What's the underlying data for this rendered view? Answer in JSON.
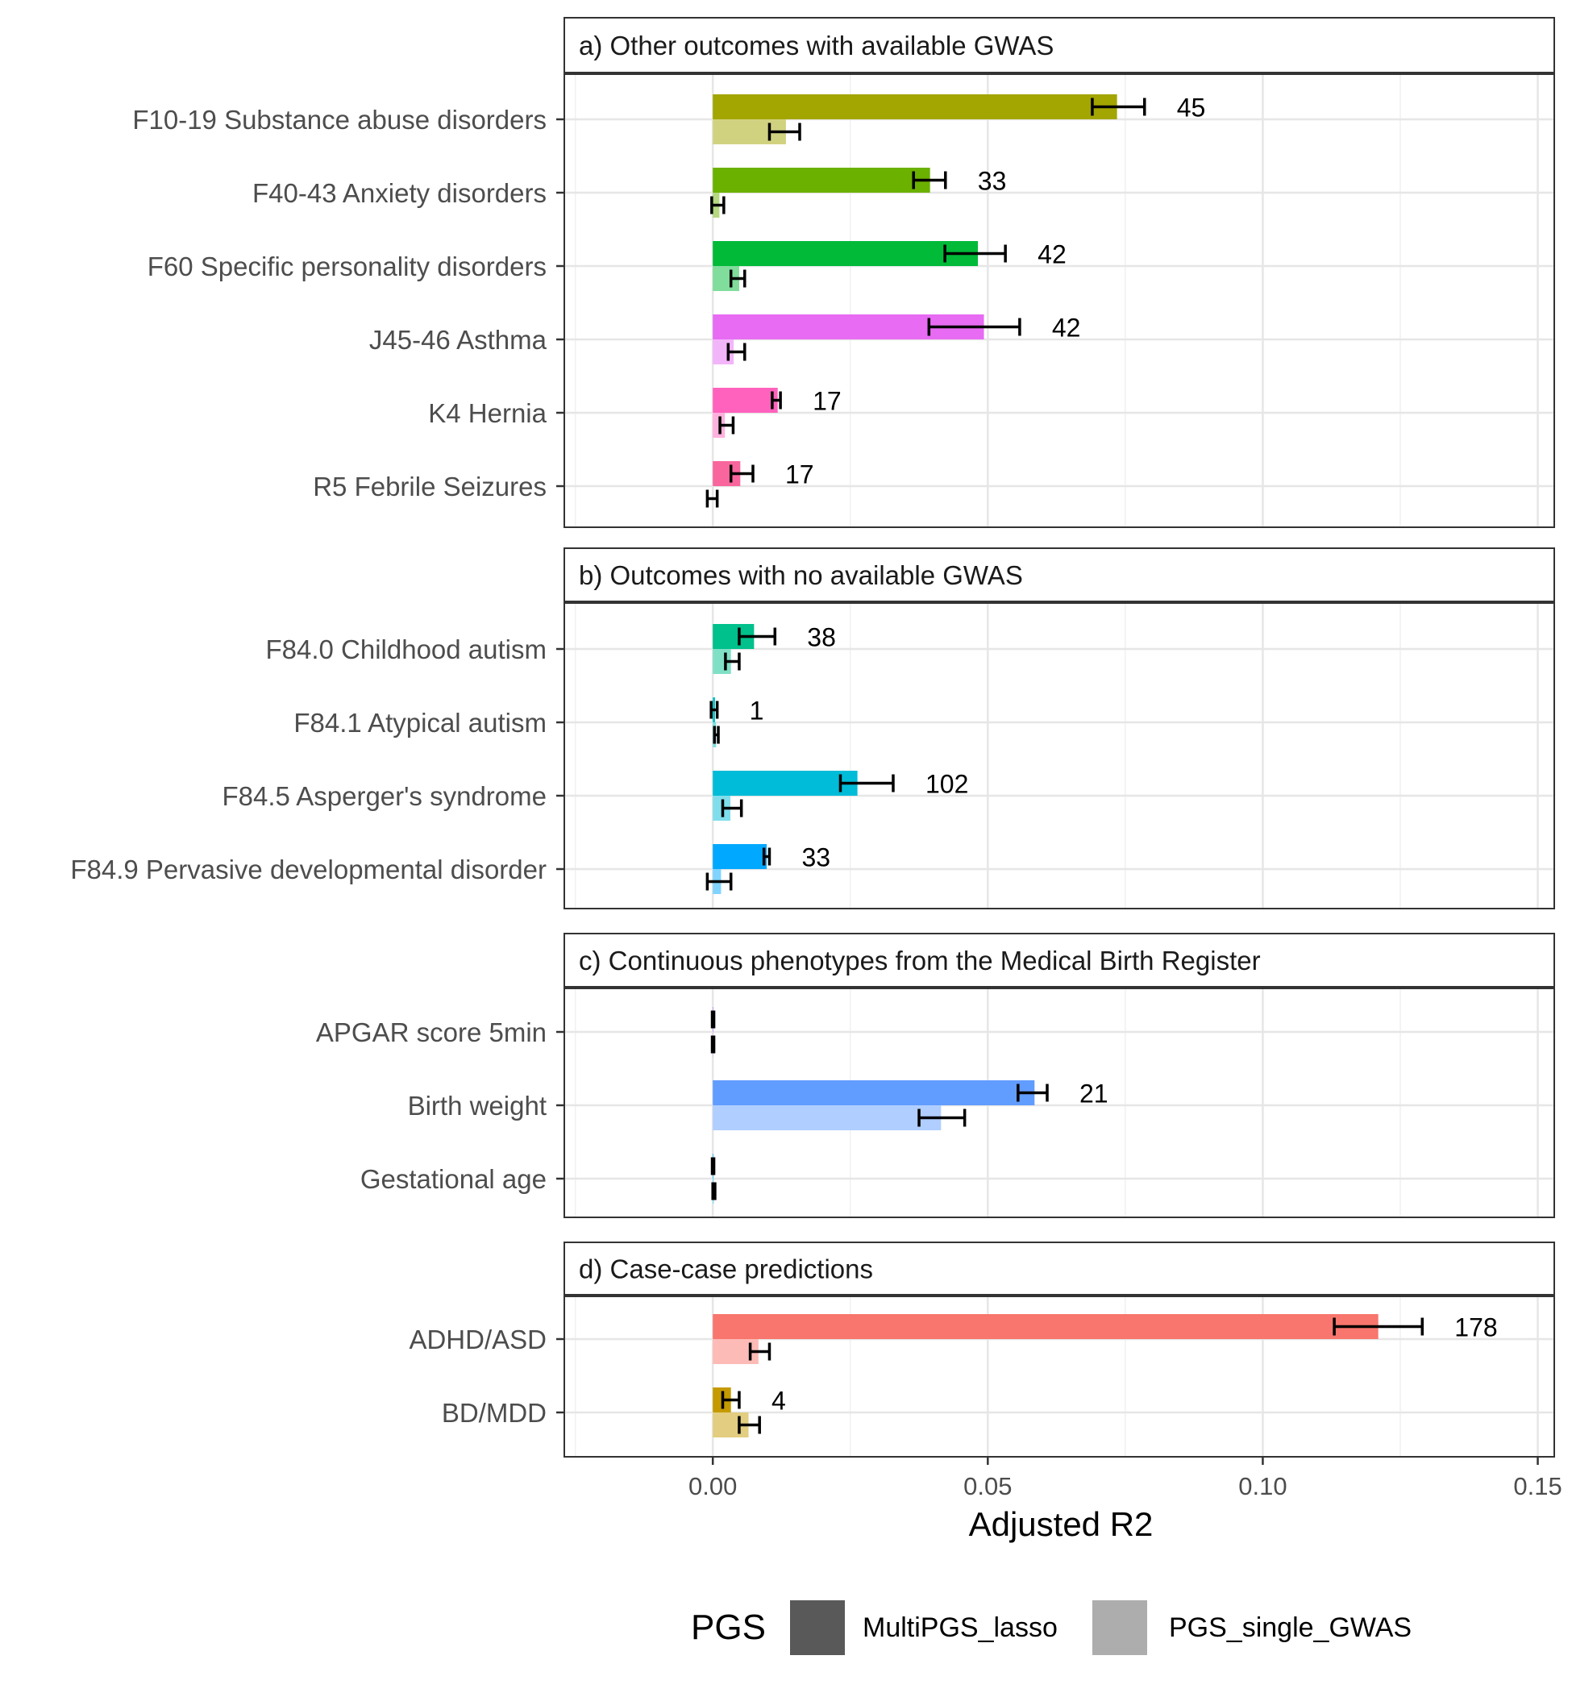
{
  "chart_data": {
    "type": "bar",
    "orientation": "horizontal",
    "xlabel": "Adjusted R2",
    "xlim": [
      -0.027,
      0.153
    ],
    "xticks": [
      0.0,
      0.05,
      0.1,
      0.15
    ],
    "xtick_labels": [
      "0.00",
      "0.05",
      "0.10",
      "0.15"
    ],
    "grid": true,
    "legend": {
      "title": "PGS",
      "position": "bottom",
      "entries": [
        {
          "name": "MultiPGS_lasso",
          "color": "#595959"
        },
        {
          "name": "PGS_single_GWAS",
          "color": "#adadad"
        }
      ]
    },
    "panels": [
      {
        "title": "a) Other outcomes with available GWAS",
        "rows": [
          {
            "label": "F10-19 Substance abuse disorders",
            "color": "#A3A500",
            "multi": 0.0735,
            "multi_err": [
              0.069,
              0.0785
            ],
            "single": 0.0133,
            "single_err": [
              0.0103,
              0.0158
            ],
            "n": "45"
          },
          {
            "label": "F40-43 Anxiety disorders",
            "color": "#6BB100",
            "multi": 0.0395,
            "multi_err": [
              0.0365,
              0.0423
            ],
            "single": 0.0012,
            "single_err": [
              -0.0002,
              0.002
            ],
            "n": "33"
          },
          {
            "label": "F60 Specific personality disorders",
            "color": "#00BA38",
            "multi": 0.0482,
            "multi_err": [
              0.0422,
              0.0532
            ],
            "single": 0.0048,
            "single_err": [
              0.0033,
              0.0058
            ],
            "n": "42"
          },
          {
            "label": "J45-46 Asthma",
            "color": "#E76BF3",
            "multi": 0.0493,
            "multi_err": [
              0.0393,
              0.0558
            ],
            "single": 0.0038,
            "single_err": [
              0.0028,
              0.0058
            ],
            "n": "42"
          },
          {
            "label": "K4 Hernia",
            "color": "#FF62BC",
            "multi": 0.0118,
            "multi_err": [
              0.0108,
              0.0123
            ],
            "single": 0.0022,
            "single_err": [
              0.0013,
              0.0037
            ],
            "n": "17"
          },
          {
            "label": "R5 Febrile Seizures",
            "color": "#F8669D",
            "multi": 0.005,
            "multi_err": [
              0.0033,
              0.0073
            ],
            "single": 0.0,
            "single_err": [
              -0.001,
              0.0008
            ],
            "n": "17"
          }
        ]
      },
      {
        "title": "b) Outcomes with no available GWAS",
        "rows": [
          {
            "label": "F84.0 Childhood autism",
            "color": "#00C08B",
            "multi": 0.0075,
            "multi_err": [
              0.0048,
              0.0113
            ],
            "single": 0.0033,
            "single_err": [
              0.0023,
              0.0048
            ],
            "n": "38"
          },
          {
            "label": "F84.1 Atypical autism",
            "color": "#00BFC4",
            "multi": 0.0004,
            "multi_err": [
              -0.0003,
              0.0008
            ],
            "single": 0.0006,
            "single_err": [
              0.0003,
              0.001
            ],
            "n": "1"
          },
          {
            "label": "F84.5 Asperger's syndrome",
            "color": "#00BCD8",
            "multi": 0.0263,
            "multi_err": [
              0.0232,
              0.0328
            ],
            "single": 0.0032,
            "single_err": [
              0.0018,
              0.0052
            ],
            "n": "102"
          },
          {
            "label": "F84.9 Pervasive developmental disorder",
            "color": "#00A9FF",
            "multi": 0.0098,
            "multi_err": [
              0.0093,
              0.0103
            ],
            "single": 0.0015,
            "single_err": [
              -0.001,
              0.0033
            ],
            "n": "33"
          }
        ]
      },
      {
        "title": "c) Continuous phenotypes from the Medical Birth Register",
        "rows": [
          {
            "label": "APGAR score 5min",
            "color": "#C77CFF",
            "multi": 0.0001,
            "multi_err": [
              -0.0001,
              0.0002
            ],
            "single": 0.0001,
            "single_err": [
              -0.0001,
              0.0002
            ],
            "n": ""
          },
          {
            "label": "Birth weight",
            "color": "#619CFF",
            "multi": 0.0585,
            "multi_err": [
              0.0555,
              0.0608
            ],
            "single": 0.0415,
            "single_err": [
              0.0375,
              0.0458
            ],
            "n": "21"
          },
          {
            "label": "Gestational age",
            "color": "#00B4F0",
            "multi": 0.0001,
            "multi_err": [
              -0.0001,
              0.0002
            ],
            "single": 0.0002,
            "single_err": [
              0.0,
              0.0004
            ],
            "n": ""
          }
        ]
      },
      {
        "title": "d) Case-case predictions",
        "rows": [
          {
            "label": "ADHD/ASD",
            "color": "#F8766D",
            "multi": 0.121,
            "multi_err": [
              0.113,
              0.129
            ],
            "single": 0.0083,
            "single_err": [
              0.0068,
              0.0103
            ],
            "n": "178"
          },
          {
            "label": "BD/MDD",
            "color": "#C49A00",
            "multi": 0.0033,
            "multi_err": [
              0.0018,
              0.0048
            ],
            "single": 0.0065,
            "single_err": [
              0.0048,
              0.0085
            ],
            "n": "4"
          }
        ]
      }
    ]
  }
}
